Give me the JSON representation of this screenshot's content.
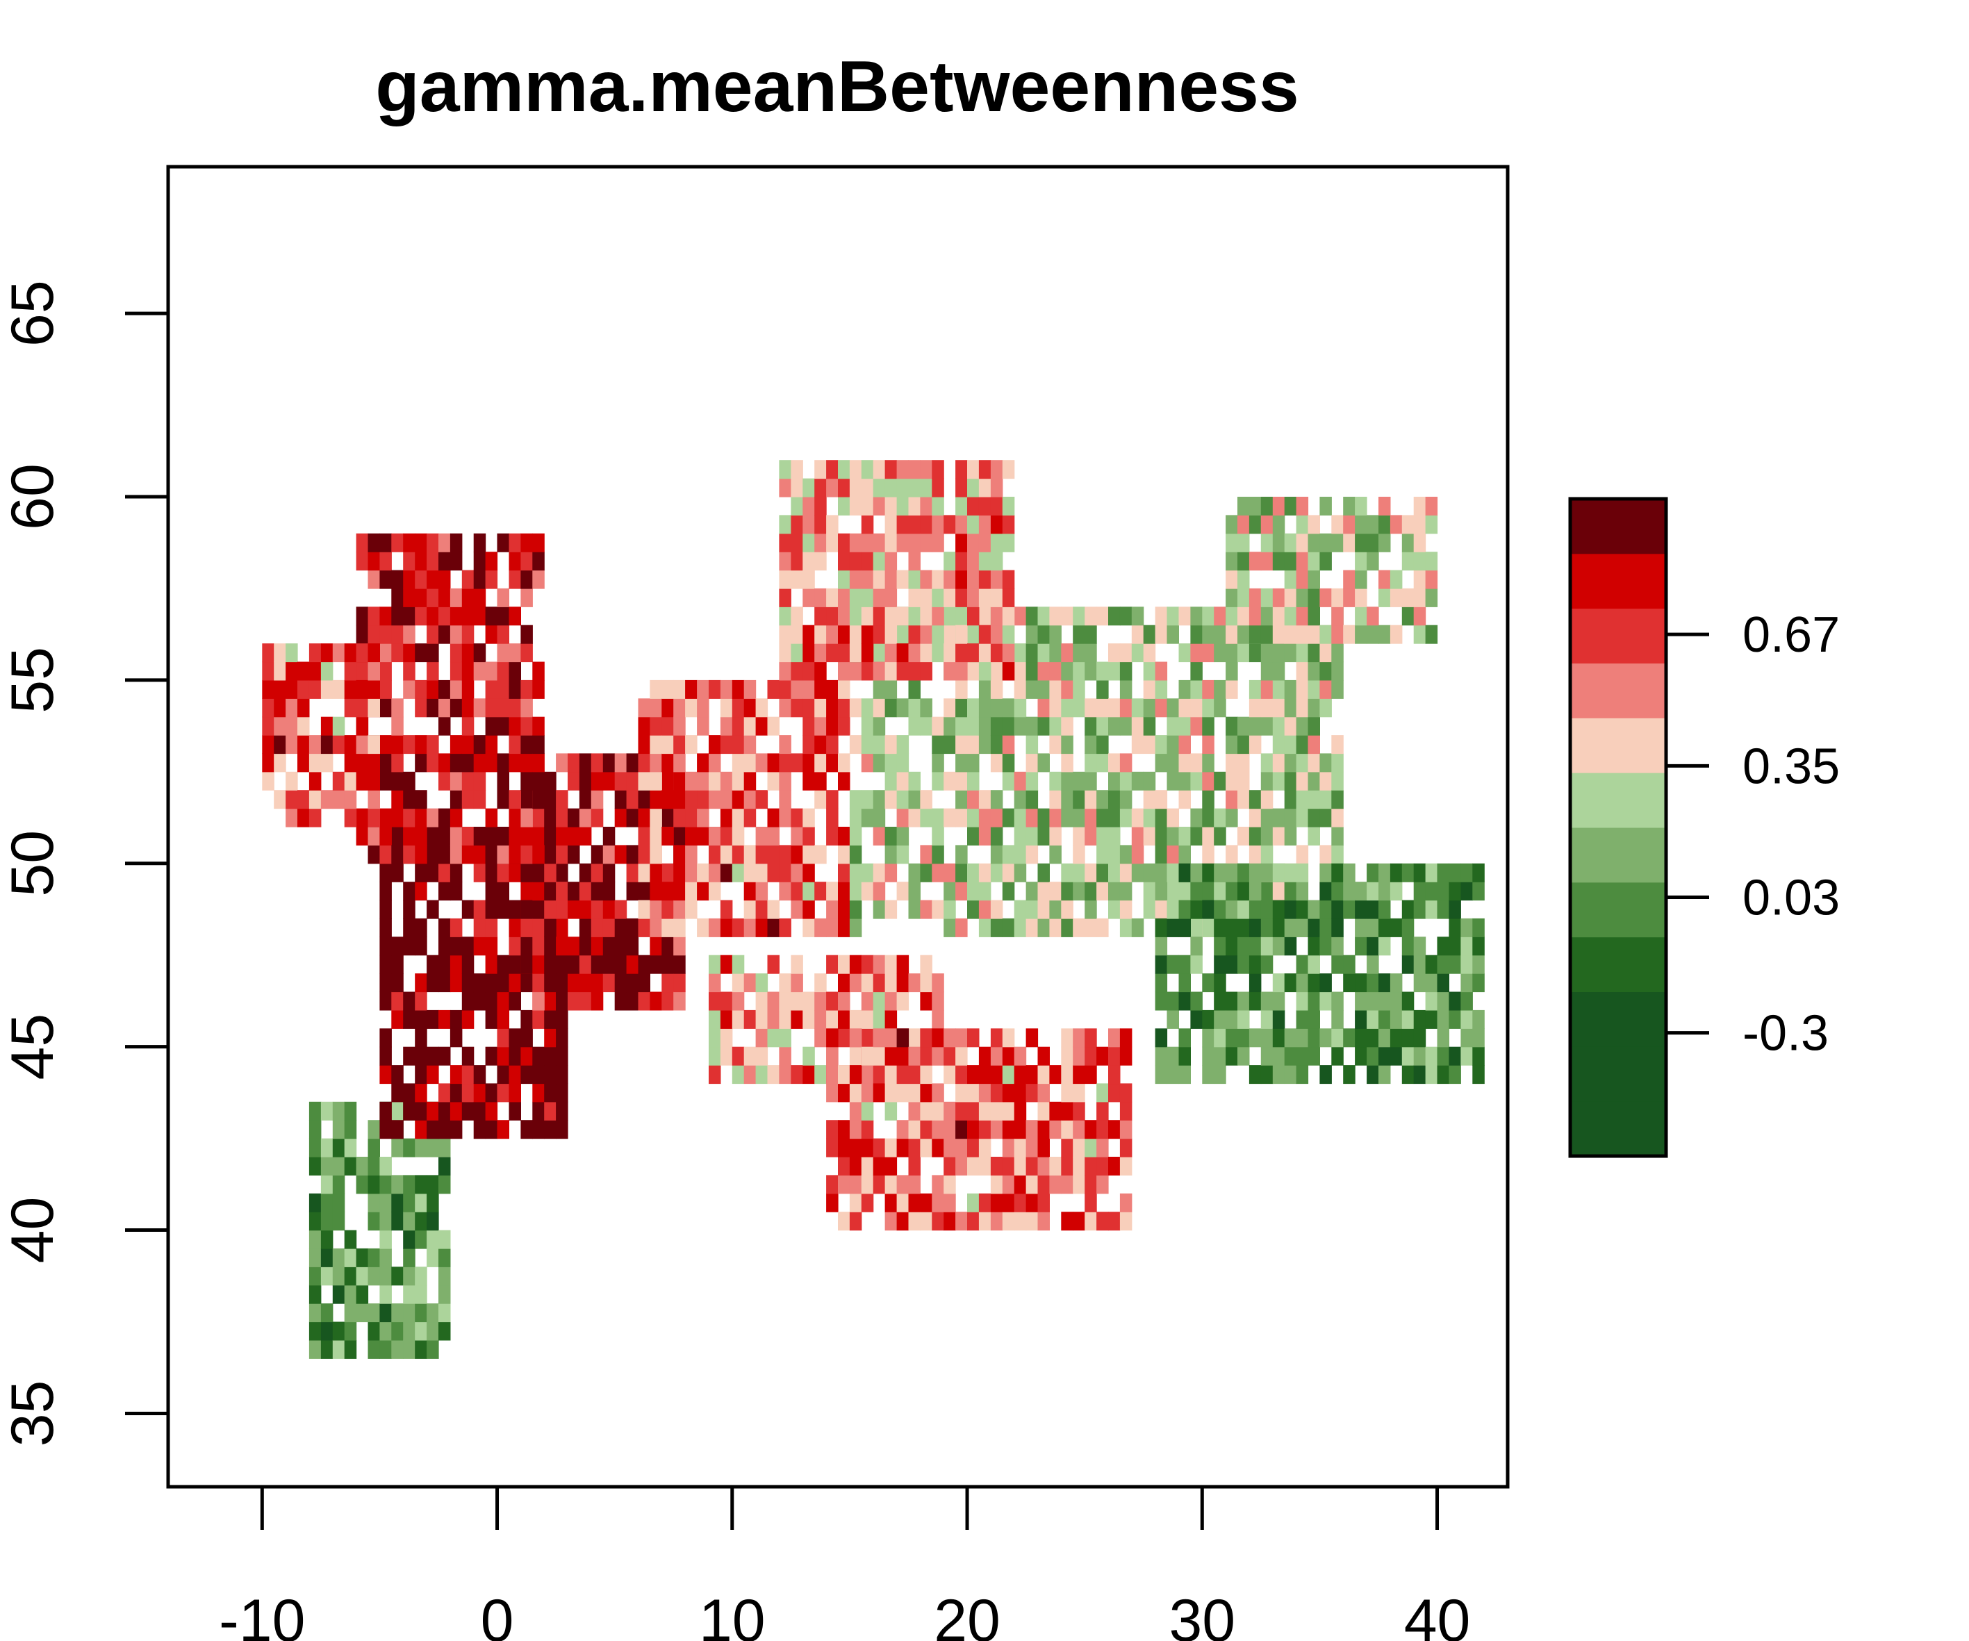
{
  "title": "gamma.meanBetweenness",
  "chart_data": {
    "type": "heatmap",
    "title": "gamma.meanBetweenness",
    "xlabel": "",
    "ylabel": "",
    "xlim": [
      -14,
      43
    ],
    "ylim": [
      33,
      69
    ],
    "x_ticks": [
      "-10",
      "0",
      "10",
      "20",
      "30",
      "40"
    ],
    "x_tick_values": [
      -10,
      0,
      10,
      20,
      30,
      40
    ],
    "y_ticks": [
      "35",
      "40",
      "45",
      "50",
      "55",
      "60",
      "65"
    ],
    "y_tick_values": [
      35,
      40,
      45,
      50,
      55,
      60,
      65
    ],
    "legend": {
      "placement": "right",
      "ticks": [
        "-0.3",
        "0.03",
        "0.35",
        "0.67"
      ],
      "tick_values": [
        -0.3,
        0.03,
        0.35,
        0.67
      ],
      "range": [
        -0.6,
        1.0
      ],
      "colors": [
        "#17561f",
        "#17561f",
        "#17561f",
        "#23681f",
        "#4d8c3f",
        "#7fb06c",
        "#acd49b",
        "#f8cfbb",
        "#ee7f7a",
        "#e03131",
        "#d10000",
        "#6a0008"
      ]
    },
    "regions": [
      {
        "name": "",
        "lon": [
          -8,
          -2
        ],
        "lat": [
          36.5,
          43.5
        ],
        "value": 0.0
      },
      {
        "name": "",
        "lon": [
          -5,
          3
        ],
        "lat": [
          42.5,
          51
        ],
        "value": 0.95
      },
      {
        "name": "",
        "lon": [
          1,
          8
        ],
        "lat": [
          46,
          53
        ],
        "value": 0.85
      },
      {
        "name": "",
        "lon": [
          -6,
          2
        ],
        "lat": [
          50,
          59
        ],
        "value": 0.8
      },
      {
        "name": "",
        "lon": [
          -10,
          -5
        ],
        "lat": [
          51,
          56
        ],
        "value": 0.6
      },
      {
        "name": "",
        "lon": [
          6,
          15
        ],
        "lat": [
          48,
          55
        ],
        "value": 0.6
      },
      {
        "name": "",
        "lon": [
          15,
          36
        ],
        "lat": [
          48,
          57
        ],
        "value": 0.25
      },
      {
        "name": "",
        "lon": [
          12,
          22
        ],
        "lat": [
          55,
          61
        ],
        "value": 0.5
      },
      {
        "name": "",
        "lon": [
          28,
          42
        ],
        "lat": [
          44,
          50
        ],
        "value": 0.0
      },
      {
        "name": "",
        "lon": [
          9,
          19
        ],
        "lat": [
          44,
          47.5
        ],
        "value": 0.5
      },
      {
        "name": "",
        "lon": [
          14,
          27
        ],
        "lat": [
          40,
          45.5
        ],
        "value": 0.6
      },
      {
        "name": "",
        "lon": [
          31,
          40
        ],
        "lat": [
          56,
          60
        ],
        "value": 0.3
      }
    ]
  }
}
